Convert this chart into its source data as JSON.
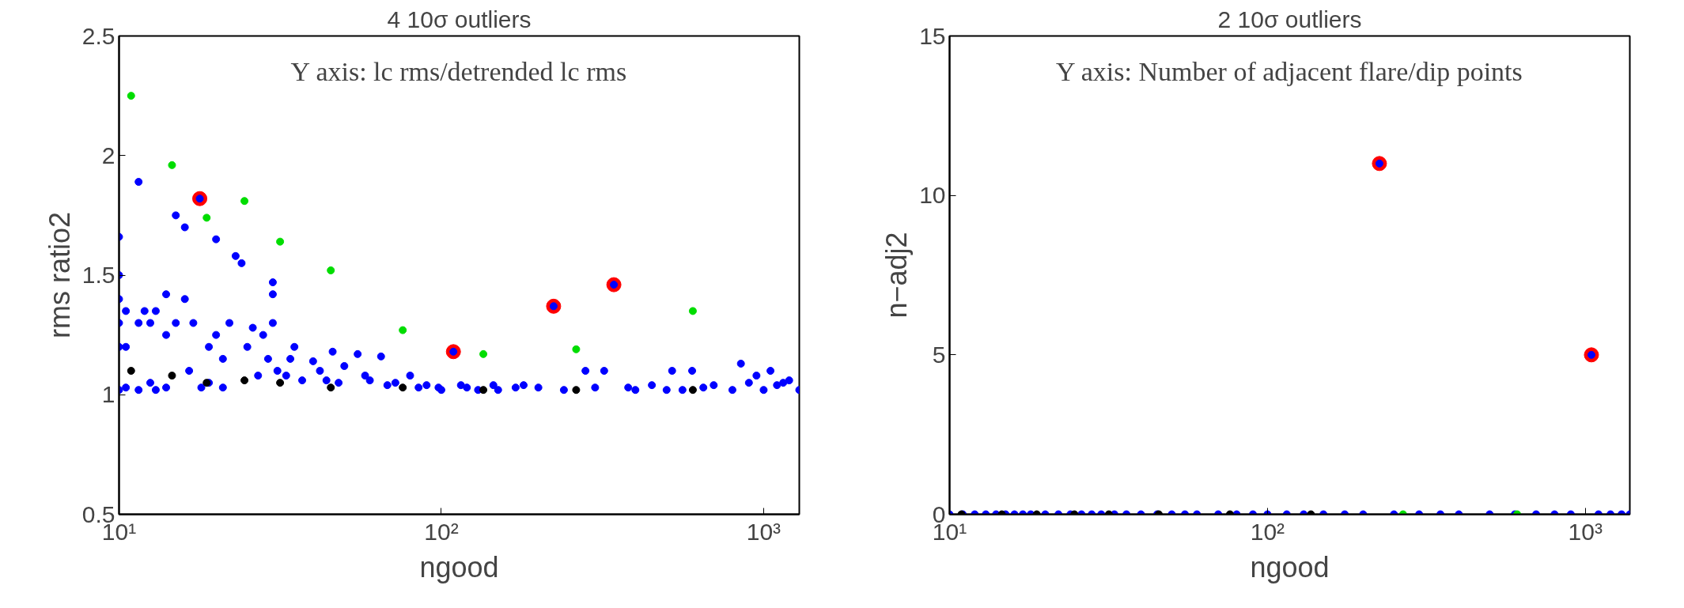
{
  "chart_data": [
    {
      "type": "scatter",
      "title": "4 10σ outliers",
      "xlabel": "ngood",
      "ylabel": "rms ratio2",
      "log": "x",
      "marker": "circle",
      "grid": false,
      "xlim": [
        10,
        1290
      ],
      "xticks": [
        {
          "value": 10,
          "label": "10¹"
        },
        {
          "value": 100,
          "label": "10²"
        },
        {
          "value": 1000,
          "label": "10³"
        }
      ],
      "ylim": [
        0.5,
        2.5
      ],
      "yticks": [
        0.5,
        1,
        1.5,
        2,
        2.5
      ],
      "annotations": [
        "Y axis: lc rms/detrended lc rms"
      ],
      "series": [
        {
          "color": "#ff0000",
          "x": [
            17.8,
            109,
            223,
            343
          ],
          "values": [
            1.82,
            1.18,
            1.37,
            1.46
          ]
        },
        {
          "color": "#0000ff",
          "x": [
            10,
            10,
            10,
            10,
            10,
            10,
            10.5,
            10.5,
            10.5,
            11.5,
            11.5,
            11.5,
            12,
            12.5,
            12.5,
            13,
            13,
            14,
            14,
            14,
            15,
            15,
            16,
            16,
            16.5,
            17,
            17.8,
            18,
            19,
            19,
            20,
            20,
            21,
            21,
            22,
            23,
            24,
            25,
            26,
            27,
            28,
            29,
            30,
            30,
            30,
            31,
            33,
            34,
            35,
            37,
            40,
            42,
            44,
            46,
            48,
            50,
            55,
            58,
            60,
            65,
            68,
            72,
            80,
            85,
            90,
            98,
            100,
            109,
            115,
            120,
            130,
            145,
            150,
            170,
            180,
            200,
            223,
            240,
            280,
            300,
            320,
            343,
            380,
            400,
            450,
            500,
            520,
            560,
            600,
            650,
            700,
            800,
            850,
            900,
            950,
            1000,
            1050,
            1100,
            1150,
            1200,
            1290
          ],
          "values": [
            1.66,
            1.5,
            1.4,
            1.3,
            1.2,
            1.02,
            1.35,
            1.2,
            1.03,
            1.89,
            1.3,
            1.02,
            1.35,
            1.3,
            1.05,
            1.35,
            1.02,
            1.42,
            1.25,
            1.03,
            1.75,
            1.3,
            1.7,
            1.4,
            1.1,
            1.3,
            1.82,
            1.03,
            1.2,
            1.05,
            1.65,
            1.25,
            1.15,
            1.03,
            1.3,
            1.58,
            1.55,
            1.2,
            1.28,
            1.08,
            1.25,
            1.15,
            1.47,
            1.42,
            1.3,
            1.1,
            1.08,
            1.15,
            1.2,
            1.06,
            1.14,
            1.1,
            1.06,
            1.18,
            1.05,
            1.12,
            1.17,
            1.08,
            1.06,
            1.16,
            1.04,
            1.05,
            1.08,
            1.03,
            1.04,
            1.03,
            1.02,
            1.18,
            1.04,
            1.03,
            1.02,
            1.04,
            1.02,
            1.03,
            1.04,
            1.03,
            1.37,
            1.02,
            1.1,
            1.03,
            1.1,
            1.46,
            1.03,
            1.02,
            1.04,
            1.02,
            1.1,
            1.02,
            1.1,
            1.03,
            1.04,
            1.02,
            1.13,
            1.05,
            1.08,
            1.02,
            1.1,
            1.04,
            1.05,
            1.06,
            1.02
          ]
        },
        {
          "color": "#00dd00",
          "x": [
            10.9,
            14.6,
            18.7,
            24.5,
            31.6,
            45.4,
            75.9,
            135,
            262,
            603
          ],
          "values": [
            2.25,
            1.96,
            1.74,
            1.81,
            1.64,
            1.52,
            1.27,
            1.17,
            1.19,
            1.35
          ]
        },
        {
          "color": "#000000",
          "x": [
            10.9,
            14.6,
            18.7,
            24.5,
            31.6,
            45.4,
            75.9,
            135,
            262,
            603
          ],
          "values": [
            1.1,
            1.08,
            1.05,
            1.06,
            1.05,
            1.03,
            1.03,
            1.02,
            1.02,
            1.02
          ]
        }
      ]
    },
    {
      "type": "scatter",
      "title": "2 10σ outliers",
      "xlabel": "ngood",
      "ylabel": "n−adj2",
      "log": "x",
      "marker": "circle",
      "grid": false,
      "xlim": [
        10,
        1380
      ],
      "xticks": [
        {
          "value": 10,
          "label": "10¹"
        },
        {
          "value": 100,
          "label": "10²"
        },
        {
          "value": 1000,
          "label": "10³"
        }
      ],
      "ylim": [
        0,
        15
      ],
      "yticks": [
        0,
        5,
        10,
        15
      ],
      "annotations": [
        "Y axis: Number of adjacent flare/dip points"
      ],
      "series": [
        {
          "color": "#ff0000",
          "x": [
            225,
            1045
          ],
          "values": [
            11,
            5
          ]
        },
        {
          "color": "#0000ff",
          "x": [
            10,
            11,
            12,
            13,
            14,
            15,
            16,
            17,
            18,
            20,
            22,
            24,
            26,
            28,
            30,
            33,
            36,
            40,
            45,
            50,
            55,
            60,
            70,
            80,
            90,
            100,
            115,
            130,
            150,
            175,
            200,
            225,
            250,
            300,
            350,
            400,
            500,
            600,
            700,
            800,
            900,
            1045,
            1100,
            1200,
            1300,
            1380
          ],
          "values": [
            0,
            0,
            0,
            0,
            0,
            0,
            0,
            0,
            0,
            0,
            0,
            0,
            0,
            0,
            0,
            0,
            0,
            0,
            0,
            0,
            0,
            0,
            0,
            0,
            0,
            0,
            0,
            0,
            0,
            0,
            0,
            11,
            0,
            0,
            0,
            0,
            0,
            0,
            0,
            0,
            0,
            5,
            0,
            0,
            0,
            0
          ]
        },
        {
          "color": "#00dd00",
          "x": [
            267,
            610
          ],
          "values": [
            0,
            0
          ]
        },
        {
          "color": "#000000",
          "x": [
            10.9,
            14.6,
            18.8,
            24.7,
            31.7,
            45.5,
            76.2,
            137
          ],
          "values": [
            0,
            0,
            0,
            0,
            0,
            0,
            0,
            0
          ]
        }
      ]
    }
  ]
}
